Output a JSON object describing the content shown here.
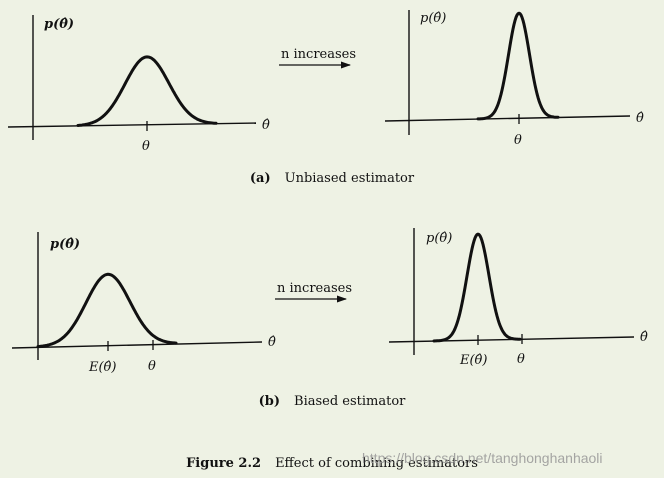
{
  "panel_a": {
    "left": {
      "ylabel": "p(θ̂)",
      "xlabel": "θ̂",
      "tick_label": "θ"
    },
    "right": {
      "ylabel": "p(θ̂)",
      "xlabel": "θ̂",
      "tick_label": "θ"
    },
    "arrow_label": "n increases",
    "caption_label": "(a)",
    "caption_text": "Unbiased estimator"
  },
  "panel_b": {
    "left": {
      "ylabel": "p(θ̂)",
      "xlabel": "θ̂",
      "tick_label_1": "E(θ̂)",
      "tick_label_2": "θ"
    },
    "right": {
      "ylabel": "p(θ̂)",
      "xlabel": "θ̂",
      "tick_label_1": "E(θ̂)",
      "tick_label_2": "θ"
    },
    "arrow_label": "n increases",
    "caption_label": "(b)",
    "caption_text": "Biased estimator"
  },
  "figure_caption": {
    "label": "Figure 2.2",
    "text": "Effect of combining estimators"
  },
  "watermark": "https://blog.csdn.net/tanghonghanhaoli",
  "colors": {
    "background": "#eef2e4",
    "ink": "#111111",
    "watermark": "#969696"
  }
}
